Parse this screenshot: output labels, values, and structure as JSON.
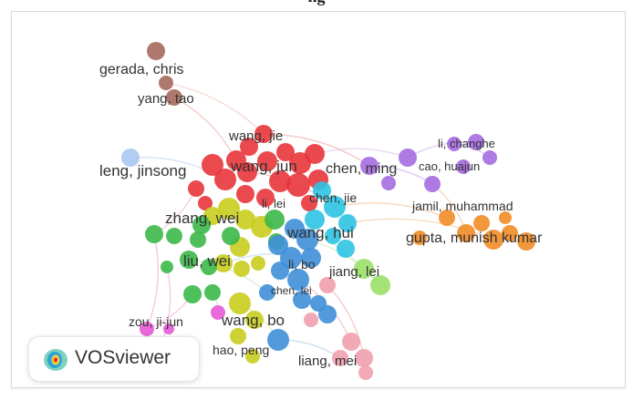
{
  "header": {
    "caption": "ng"
  },
  "brand": {
    "name": "VOSviewer"
  },
  "clusters": {
    "red": "#e8353b",
    "green": "#3cb84a",
    "blue": "#3f8fd8",
    "yellow": "#c9cd1e",
    "purple": "#a56ce0",
    "cyan": "#2cc3e3",
    "orange": "#f28c28",
    "brown": "#a56a5d",
    "pink": "#f0a0ad",
    "magenta": "#e55ad7",
    "lightblue": "#a8c8ee",
    "lime": "#9be06a"
  },
  "labels": [
    {
      "key": "gerada_chris",
      "text": "gerada, chris"
    },
    {
      "key": "yang_tao",
      "text": "yang, tao"
    },
    {
      "key": "wang_jie",
      "text": "wang, jie"
    },
    {
      "key": "leng_jinsong",
      "text": "leng, jinsong"
    },
    {
      "key": "wang_jun",
      "text": "wang, jun"
    },
    {
      "key": "chen_ming",
      "text": "chen, ming"
    },
    {
      "key": "li_changhe",
      "text": "li, changhe"
    },
    {
      "key": "cao_huajun",
      "text": "cao, huajun"
    },
    {
      "key": "chen_jie",
      "text": "chen, jie"
    },
    {
      "key": "li_lei",
      "text": "li, lei"
    },
    {
      "key": "zhang_wei",
      "text": "zhang, wei"
    },
    {
      "key": "jamil_muhammad",
      "text": "jamil, muhammad"
    },
    {
      "key": "wang_hui",
      "text": "wang, hui"
    },
    {
      "key": "gupta_munish_kumar",
      "text": "gupta, munish kumar"
    },
    {
      "key": "liu_wei",
      "text": "liu, wei"
    },
    {
      "key": "li_bo",
      "text": "li, bo"
    },
    {
      "key": "jiang_lei",
      "text": "jiang, lei"
    },
    {
      "key": "chen_lei",
      "text": "chen, lei"
    },
    {
      "key": "zou_ji_jun",
      "text": "zou, ji-jun"
    },
    {
      "key": "wang_bo",
      "text": "wang, bo"
    },
    {
      "key": "hao_peng",
      "text": "hao, peng"
    },
    {
      "key": "liang_mei",
      "text": "liang, mei"
    }
  ]
}
